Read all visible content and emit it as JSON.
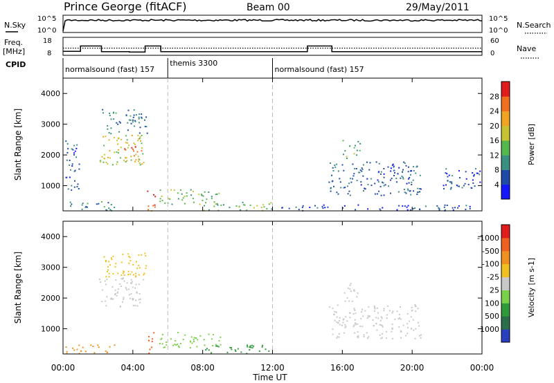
{
  "header": {
    "station": "Prince George (fitACF)",
    "beam": "Beam 00",
    "date": "29/May/2011"
  },
  "top_panel": {
    "left_label": "N.Sky",
    "left_ticks": [
      "10^5",
      "10^0"
    ],
    "right_ticks": [
      "10^5",
      "10^0"
    ],
    "right_label": "N.Search"
  },
  "freq_panel": {
    "left_label_line1": "Freq.",
    "left_label_line2": "[MHz]",
    "left_ticks": [
      "18",
      "8"
    ],
    "right_ticks": [
      "60",
      "0"
    ],
    "right_label": "Nave",
    "freq_steps": [
      {
        "t0": 0,
        "t1": 1.0,
        "mhz": 10.2
      },
      {
        "t0": 1.0,
        "t1": 2.2,
        "mhz": 13.2
      },
      {
        "t0": 2.2,
        "t1": 3.8,
        "mhz": 10.0
      },
      {
        "t0": 3.8,
        "t1": 4.7,
        "mhz": 9.8
      },
      {
        "t0": 4.7,
        "t1": 5.6,
        "mhz": 13.2
      },
      {
        "t0": 5.6,
        "t1": 14.0,
        "mhz": 10.0
      },
      {
        "t0": 14.0,
        "t1": 15.4,
        "mhz": 13.2
      },
      {
        "t0": 15.4,
        "t1": 24.0,
        "mhz": 10.0
      }
    ],
    "nave_level": 12.0
  },
  "cpid": {
    "label": "CPID",
    "segments": [
      {
        "name": "normalsound (fast) 157",
        "start": 0,
        "end": 6.0
      },
      {
        "name": "themis 3300",
        "start": 6.0,
        "end": 12.0
      },
      {
        "name": "normalsound (fast) 157",
        "start": 12.0,
        "end": 24.0
      }
    ]
  },
  "chart_data": [
    {
      "type": "heatmap",
      "title": "",
      "xlabel": "Time UT",
      "ylabel": "Slant Range [km]",
      "xlim": [
        0,
        24
      ],
      "ylim": [
        180,
        4500
      ],
      "xticks": [
        "00:00",
        "04:00",
        "08:00",
        "12:00",
        "16:00",
        "20:00",
        "00:00"
      ],
      "yticks": [
        1000,
        2000,
        3000,
        4000
      ],
      "colorbar": {
        "label": "Power [dB]",
        "ticks": [
          "4",
          "8",
          "12",
          "16",
          "20",
          "24",
          "28"
        ],
        "colors": [
          "#1515ff",
          "#1f4aa8",
          "#3a8f82",
          "#55b84c",
          "#c9c232",
          "#f0a422",
          "#f07020",
          "#e01c1c"
        ]
      },
      "regions": [
        {
          "t0": 2.0,
          "t1": 4.6,
          "r0": 1700,
          "r1": 2700,
          "value": 18
        },
        {
          "t0": 3.5,
          "t1": 4.5,
          "r0": 1800,
          "r1": 2300,
          "value": 26
        },
        {
          "t0": 2.2,
          "t1": 4.8,
          "r0": 2700,
          "r1": 3500,
          "value": 9
        },
        {
          "t0": 0.1,
          "t1": 0.9,
          "r0": 800,
          "r1": 2500,
          "value": 7
        },
        {
          "t0": 4.8,
          "t1": 5.3,
          "r0": 200,
          "r1": 900,
          "value": 27
        },
        {
          "t0": 5.5,
          "t1": 9.0,
          "r0": 400,
          "r1": 900,
          "value": 14
        },
        {
          "t0": 8.0,
          "t1": 12.0,
          "r0": 200,
          "r1": 500,
          "value": 15
        },
        {
          "t0": 15.2,
          "t1": 20.5,
          "r0": 700,
          "r1": 1800,
          "value": 7
        },
        {
          "t0": 16.0,
          "t1": 17.0,
          "r0": 1900,
          "r1": 2500,
          "value": 13
        },
        {
          "t0": 21.5,
          "t1": 23.9,
          "r0": 900,
          "r1": 1600,
          "value": 6
        },
        {
          "t0": 12.5,
          "t1": 23.5,
          "r0": 200,
          "r1": 400,
          "value": 5
        },
        {
          "t0": 0.1,
          "t1": 3.0,
          "r0": 200,
          "r1": 500,
          "value": 9
        }
      ]
    },
    {
      "type": "heatmap",
      "title": "",
      "xlabel": "Time UT",
      "ylabel": "Slant Range [km]",
      "xlim": [
        0,
        24
      ],
      "ylim": [
        180,
        4500
      ],
      "xticks": [
        "00:00",
        "04:00",
        "08:00",
        "12:00",
        "16:00",
        "20:00",
        "00:00"
      ],
      "yticks": [
        1000,
        2000,
        3000,
        4000
      ],
      "colorbar": {
        "label": "Velocity [m s-1]",
        "ticks": [
          "1000",
          "500",
          "100",
          "25",
          "-25",
          "-100",
          "-500",
          "-1000"
        ],
        "colors": [
          "#2a3ec0",
          "#2a6f4a",
          "#2f9a3a",
          "#7ad04a",
          "#c8c8c8",
          "#f0c020",
          "#f09020",
          "#f06020",
          "#e01c1c"
        ]
      },
      "regions": [
        {
          "t0": 2.0,
          "t1": 4.6,
          "r0": 1700,
          "r1": 2700,
          "value": 0
        },
        {
          "t0": 2.2,
          "t1": 4.8,
          "r0": 2700,
          "r1": 3500,
          "value": -50
        },
        {
          "t0": 4.8,
          "t1": 5.3,
          "r0": 200,
          "r1": 900,
          "value": -600
        },
        {
          "t0": 5.5,
          "t1": 9.0,
          "r0": 400,
          "r1": 900,
          "value": 50
        },
        {
          "t0": 8.0,
          "t1": 12.0,
          "r0": 200,
          "r1": 500,
          "value": 150
        },
        {
          "t0": 15.2,
          "t1": 20.5,
          "r0": 700,
          "r1": 1800,
          "value": 5
        },
        {
          "t0": 16.0,
          "t1": 17.0,
          "r0": 1900,
          "r1": 2500,
          "value": -10
        },
        {
          "t0": 0.1,
          "t1": 3.0,
          "r0": 200,
          "r1": 500,
          "value": -150
        }
      ]
    }
  ]
}
